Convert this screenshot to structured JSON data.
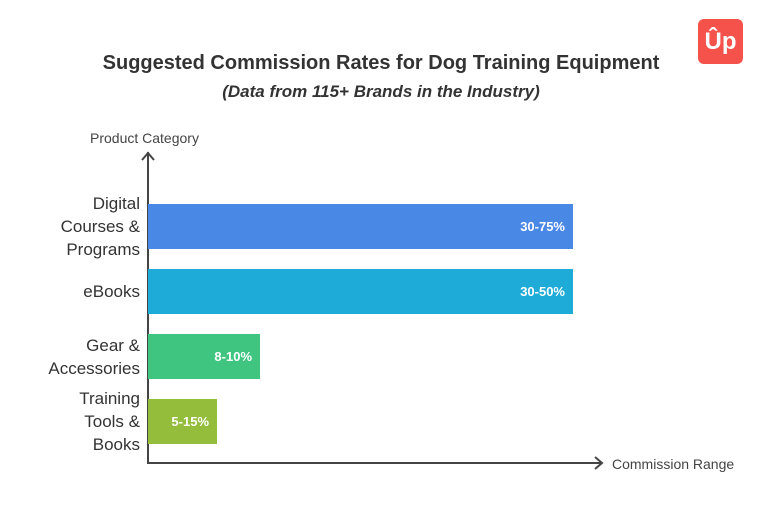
{
  "chart_data": {
    "type": "bar",
    "orientation": "horizontal",
    "title": "Suggested Commission Rates for Dog Training Equipment",
    "subtitle": "(Data from 115+ Brands in the Industry)",
    "ylabel": "Product Category",
    "xlabel": "Commission Range",
    "categories": [
      "Digital Courses & Programs",
      "eBooks",
      "Gear & Accessories",
      "Training Tools & Books"
    ],
    "category_lines": [
      [
        "Digital",
        "Courses &",
        "Programs"
      ],
      [
        "eBooks"
      ],
      [
        "Gear &",
        "Accessories"
      ],
      [
        "Training",
        "Tools &",
        "Books"
      ]
    ],
    "values": [
      "30-75%",
      "30-50%",
      "8-10%",
      "5-15%"
    ],
    "colors": [
      "#4a88e5",
      "#1eabd8",
      "#40c580",
      "#93bd3a"
    ],
    "grid": false,
    "legend": "none"
  },
  "logo": {
    "text": "Up",
    "color": "#f4524a"
  }
}
